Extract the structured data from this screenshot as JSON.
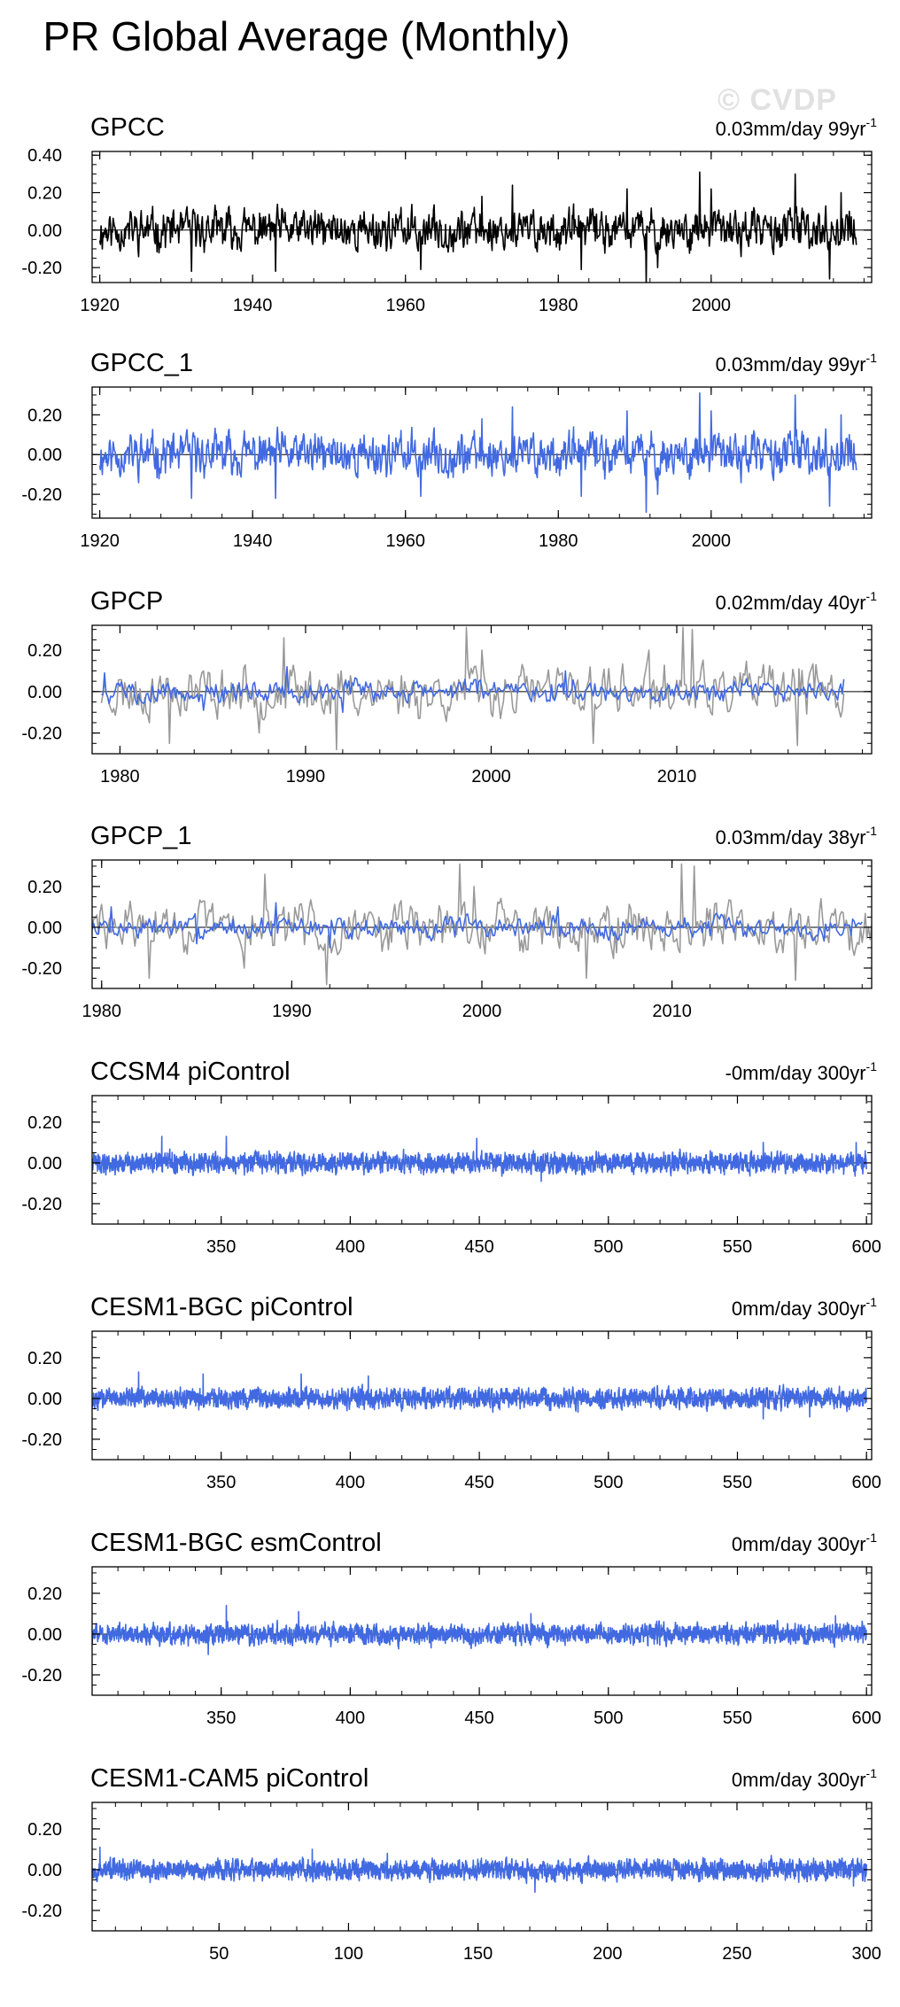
{
  "page": {
    "title": "PR Global Average (Monthly)",
    "watermark": "© CVDP"
  },
  "colors": {
    "observed_black": "#000000",
    "blue": "#4169e1",
    "gray": "#999999",
    "frame": "#000000"
  },
  "chart_data": [
    {
      "type": "line",
      "title": "GPCC",
      "trend_label": "0.03mm/day 99yr",
      "trend_exponent": "-1",
      "xlim": [
        1919,
        2021
      ],
      "ylim": [
        -0.28,
        0.42
      ],
      "yticks": [
        -0.2,
        0.0,
        0.2,
        0.4
      ],
      "ytick_labels": [
        "-0.20",
        "0.00",
        "0.20",
        "0.40"
      ],
      "xticks": [
        1920,
        1940,
        1960,
        1980,
        2000
      ],
      "xtick_labels": [
        "1920",
        "1940",
        "1960",
        "1980",
        "2000"
      ],
      "series": [
        {
          "color": "#000000",
          "x_start": 1920,
          "x_end": 2019,
          "samples_per_unit": 12,
          "amplitude": 0.08,
          "seed": 11,
          "spikes": [
            [
              1932,
              -0.22
            ],
            [
              1943,
              -0.22
            ],
            [
              1962,
              -0.21
            ],
            [
              1970,
              0.18
            ],
            [
              1974,
              0.24
            ],
            [
              1983,
              -0.21
            ],
            [
              1989,
              0.22
            ],
            [
              1991.5,
              -0.29
            ],
            [
              1993,
              -0.2
            ],
            [
              1998.5,
              0.31
            ],
            [
              2000,
              0.22
            ],
            [
              2011,
              0.3
            ],
            [
              2015.5,
              -0.26
            ],
            [
              2017,
              0.2
            ],
            [
              2019.5,
              0.05
            ]
          ]
        }
      ]
    },
    {
      "type": "line",
      "title": "GPCC_1",
      "trend_label": "0.03mm/day 99yr",
      "trend_exponent": "-1",
      "xlim": [
        1919,
        2021
      ],
      "ylim": [
        -0.32,
        0.34
      ],
      "yticks": [
        -0.2,
        0.0,
        0.2
      ],
      "ytick_labels": [
        "-0.20",
        "0.00",
        "0.20"
      ],
      "xticks": [
        1920,
        1940,
        1960,
        1980,
        2000
      ],
      "xtick_labels": [
        "1920",
        "1940",
        "1960",
        "1980",
        "2000"
      ],
      "series": [
        {
          "color": "#4169e1",
          "x_start": 1920,
          "x_end": 2019,
          "samples_per_unit": 12,
          "amplitude": 0.08,
          "seed": 11,
          "spikes": [
            [
              1932,
              -0.22
            ],
            [
              1943,
              -0.22
            ],
            [
              1962,
              -0.21
            ],
            [
              1970,
              0.18
            ],
            [
              1974,
              0.24
            ],
            [
              1983,
              -0.21
            ],
            [
              1989,
              0.22
            ],
            [
              1991.5,
              -0.29
            ],
            [
              1993,
              -0.2
            ],
            [
              1998.5,
              0.31
            ],
            [
              2000,
              0.22
            ],
            [
              2011,
              0.3
            ],
            [
              2015.5,
              -0.26
            ],
            [
              2017,
              0.2
            ],
            [
              2019.5,
              0.05
            ]
          ]
        }
      ]
    },
    {
      "type": "line",
      "title": "GPCP",
      "trend_label": "0.02mm/day 40yr",
      "trend_exponent": "-1",
      "xlim": [
        1978.5,
        2020.5
      ],
      "ylim": [
        -0.3,
        0.32
      ],
      "yticks": [
        -0.2,
        0.0,
        0.2
      ],
      "ytick_labels": [
        "-0.20",
        "0.00",
        "0.20"
      ],
      "xticks": [
        1980,
        1990,
        2000,
        2010
      ],
      "xtick_labels": [
        "1980",
        "1990",
        "2000",
        "2010"
      ],
      "series": [
        {
          "color": "#999999",
          "x_start": 1979,
          "x_end": 2019,
          "samples_per_unit": 12,
          "amplitude": 0.09,
          "seed": 23,
          "spikes": [
            [
              1982.7,
              -0.25
            ],
            [
              1987.5,
              -0.2
            ],
            [
              1988.8,
              0.26
            ],
            [
              1991.7,
              -0.28
            ],
            [
              1998.7,
              0.31
            ],
            [
              1999.5,
              0.2
            ],
            [
              2005.5,
              -0.25
            ],
            [
              2008.5,
              0.2
            ],
            [
              2010.3,
              0.31
            ],
            [
              2010.8,
              0.3
            ],
            [
              2016.5,
              -0.26
            ],
            [
              2017.5,
              0.13
            ]
          ]
        },
        {
          "color": "#4169e1",
          "x_start": 1979,
          "x_end": 2019,
          "samples_per_unit": 12,
          "amplitude": 0.04,
          "seed": 5,
          "spikes": [
            [
              1979.2,
              0.09
            ],
            [
              1984.5,
              -0.09
            ],
            [
              1989,
              0.12
            ],
            [
              1992,
              -0.1
            ],
            [
              2004,
              0.1
            ],
            [
              2019,
              0.06
            ]
          ]
        }
      ]
    },
    {
      "type": "line",
      "title": "GPCP_1",
      "trend_label": "0.03mm/day 38yr",
      "trend_exponent": "-1",
      "xlim": [
        1979.5,
        2020.5
      ],
      "ylim": [
        -0.3,
        0.33
      ],
      "yticks": [
        -0.2,
        0.0,
        0.2
      ],
      "ytick_labels": [
        "-0.20",
        "0.00",
        "0.20"
      ],
      "xticks": [
        1980,
        1990,
        2000,
        2010
      ],
      "xtick_labels": [
        "1980",
        "1990",
        "2000",
        "2010"
      ],
      "series": [
        {
          "color": "#999999",
          "x_start": 1979.5,
          "x_end": 2020.5,
          "samples_per_unit": 12,
          "amplitude": 0.09,
          "seed": 29,
          "spikes": [
            [
              1982.5,
              -0.25
            ],
            [
              1987.5,
              -0.2
            ],
            [
              1988.6,
              0.26
            ],
            [
              1991.8,
              -0.28
            ],
            [
              1998.8,
              0.31
            ],
            [
              1999.6,
              0.2
            ],
            [
              2005.5,
              -0.25
            ],
            [
              2010.5,
              0.31
            ],
            [
              2011.2,
              0.3
            ],
            [
              2016.5,
              -0.26
            ],
            [
              2017.8,
              0.14
            ],
            [
              2020.4,
              -0.06
            ]
          ]
        },
        {
          "color": "#4169e1",
          "x_start": 1979.5,
          "x_end": 2020,
          "samples_per_unit": 12,
          "amplitude": 0.04,
          "seed": 7,
          "spikes": [
            [
              1980.5,
              0.1
            ],
            [
              1985,
              -0.08
            ],
            [
              1989.2,
              0.12
            ],
            [
              1992,
              -0.1
            ],
            [
              2004,
              0.1
            ],
            [
              2019.5,
              0.04
            ]
          ]
        }
      ]
    },
    {
      "type": "line",
      "title": "CCSM4 piControl",
      "trend_label": "-0mm/day 300yr",
      "trend_exponent": "-1",
      "xlim": [
        300,
        602
      ],
      "ylim": [
        -0.3,
        0.33
      ],
      "yticks": [
        -0.2,
        0.0,
        0.2
      ],
      "ytick_labels": [
        "-0.20",
        "0.00",
        "0.20"
      ],
      "xticks": [
        350,
        400,
        450,
        500,
        550,
        600
      ],
      "xtick_labels": [
        "350",
        "400",
        "450",
        "500",
        "550",
        "600"
      ],
      "series": [
        {
          "color": "#4169e1",
          "x_start": 300,
          "x_end": 600,
          "samples_per_unit": 12,
          "amplitude": 0.035,
          "seed": 41,
          "spikes": [
            [
              327,
              0.13
            ],
            [
              352,
              0.13
            ],
            [
              449,
              0.12
            ],
            [
              474,
              -0.09
            ],
            [
              560,
              0.1
            ],
            [
              596,
              0.1
            ]
          ]
        }
      ]
    },
    {
      "type": "line",
      "title": "CESM1-BGC piControl",
      "trend_label": "0mm/day 300yr",
      "trend_exponent": "-1",
      "xlim": [
        300,
        602
      ],
      "ylim": [
        -0.3,
        0.33
      ],
      "yticks": [
        -0.2,
        0.0,
        0.2
      ],
      "ytick_labels": [
        "-0.20",
        "0.00",
        "0.20"
      ],
      "xticks": [
        350,
        400,
        450,
        500,
        550,
        600
      ],
      "xtick_labels": [
        "350",
        "400",
        "450",
        "500",
        "550",
        "600"
      ],
      "series": [
        {
          "color": "#4169e1",
          "x_start": 300,
          "x_end": 600,
          "samples_per_unit": 12,
          "amplitude": 0.035,
          "seed": 43,
          "spikes": [
            [
              318,
              0.13
            ],
            [
              343,
              0.12
            ],
            [
              381,
              0.12
            ],
            [
              407,
              0.11
            ],
            [
              560,
              -0.1
            ],
            [
              578,
              -0.09
            ]
          ]
        }
      ]
    },
    {
      "type": "line",
      "title": "CESM1-BGC esmControl",
      "trend_label": "0mm/day 300yr",
      "trend_exponent": "-1",
      "xlim": [
        300,
        602
      ],
      "ylim": [
        -0.3,
        0.33
      ],
      "yticks": [
        -0.2,
        0.0,
        0.2
      ],
      "ytick_labels": [
        "-0.20",
        "0.00",
        "0.20"
      ],
      "xticks": [
        350,
        400,
        450,
        500,
        550,
        600
      ],
      "xtick_labels": [
        "350",
        "400",
        "450",
        "500",
        "550",
        "600"
      ],
      "series": [
        {
          "color": "#4169e1",
          "x_start": 300,
          "x_end": 600,
          "samples_per_unit": 12,
          "amplitude": 0.035,
          "seed": 47,
          "spikes": [
            [
              352,
              0.14
            ],
            [
              380,
              0.11
            ],
            [
              345,
              -0.1
            ],
            [
              470,
              0.1
            ],
            [
              588,
              0.09
            ]
          ]
        }
      ]
    },
    {
      "type": "line",
      "title": "CESM1-CAM5 piControl",
      "trend_label": "0mm/day 300yr",
      "trend_exponent": "-1",
      "xlim": [
        1,
        302
      ],
      "ylim": [
        -0.3,
        0.33
      ],
      "yticks": [
        -0.2,
        0.0,
        0.2
      ],
      "ytick_labels": [
        "-0.20",
        "0.00",
        "0.20"
      ],
      "xticks": [
        50,
        100,
        150,
        200,
        250,
        300
      ],
      "xtick_labels": [
        "50",
        "100",
        "150",
        "200",
        "250",
        "300"
      ],
      "series": [
        {
          "color": "#4169e1",
          "x_start": 1,
          "x_end": 300,
          "samples_per_unit": 12,
          "amplitude": 0.035,
          "seed": 53,
          "spikes": [
            [
              4,
              0.11
            ],
            [
              86,
              0.1
            ],
            [
              172,
              -0.11
            ],
            [
              115,
              0.08
            ],
            [
              295,
              -0.08
            ]
          ]
        }
      ]
    }
  ]
}
